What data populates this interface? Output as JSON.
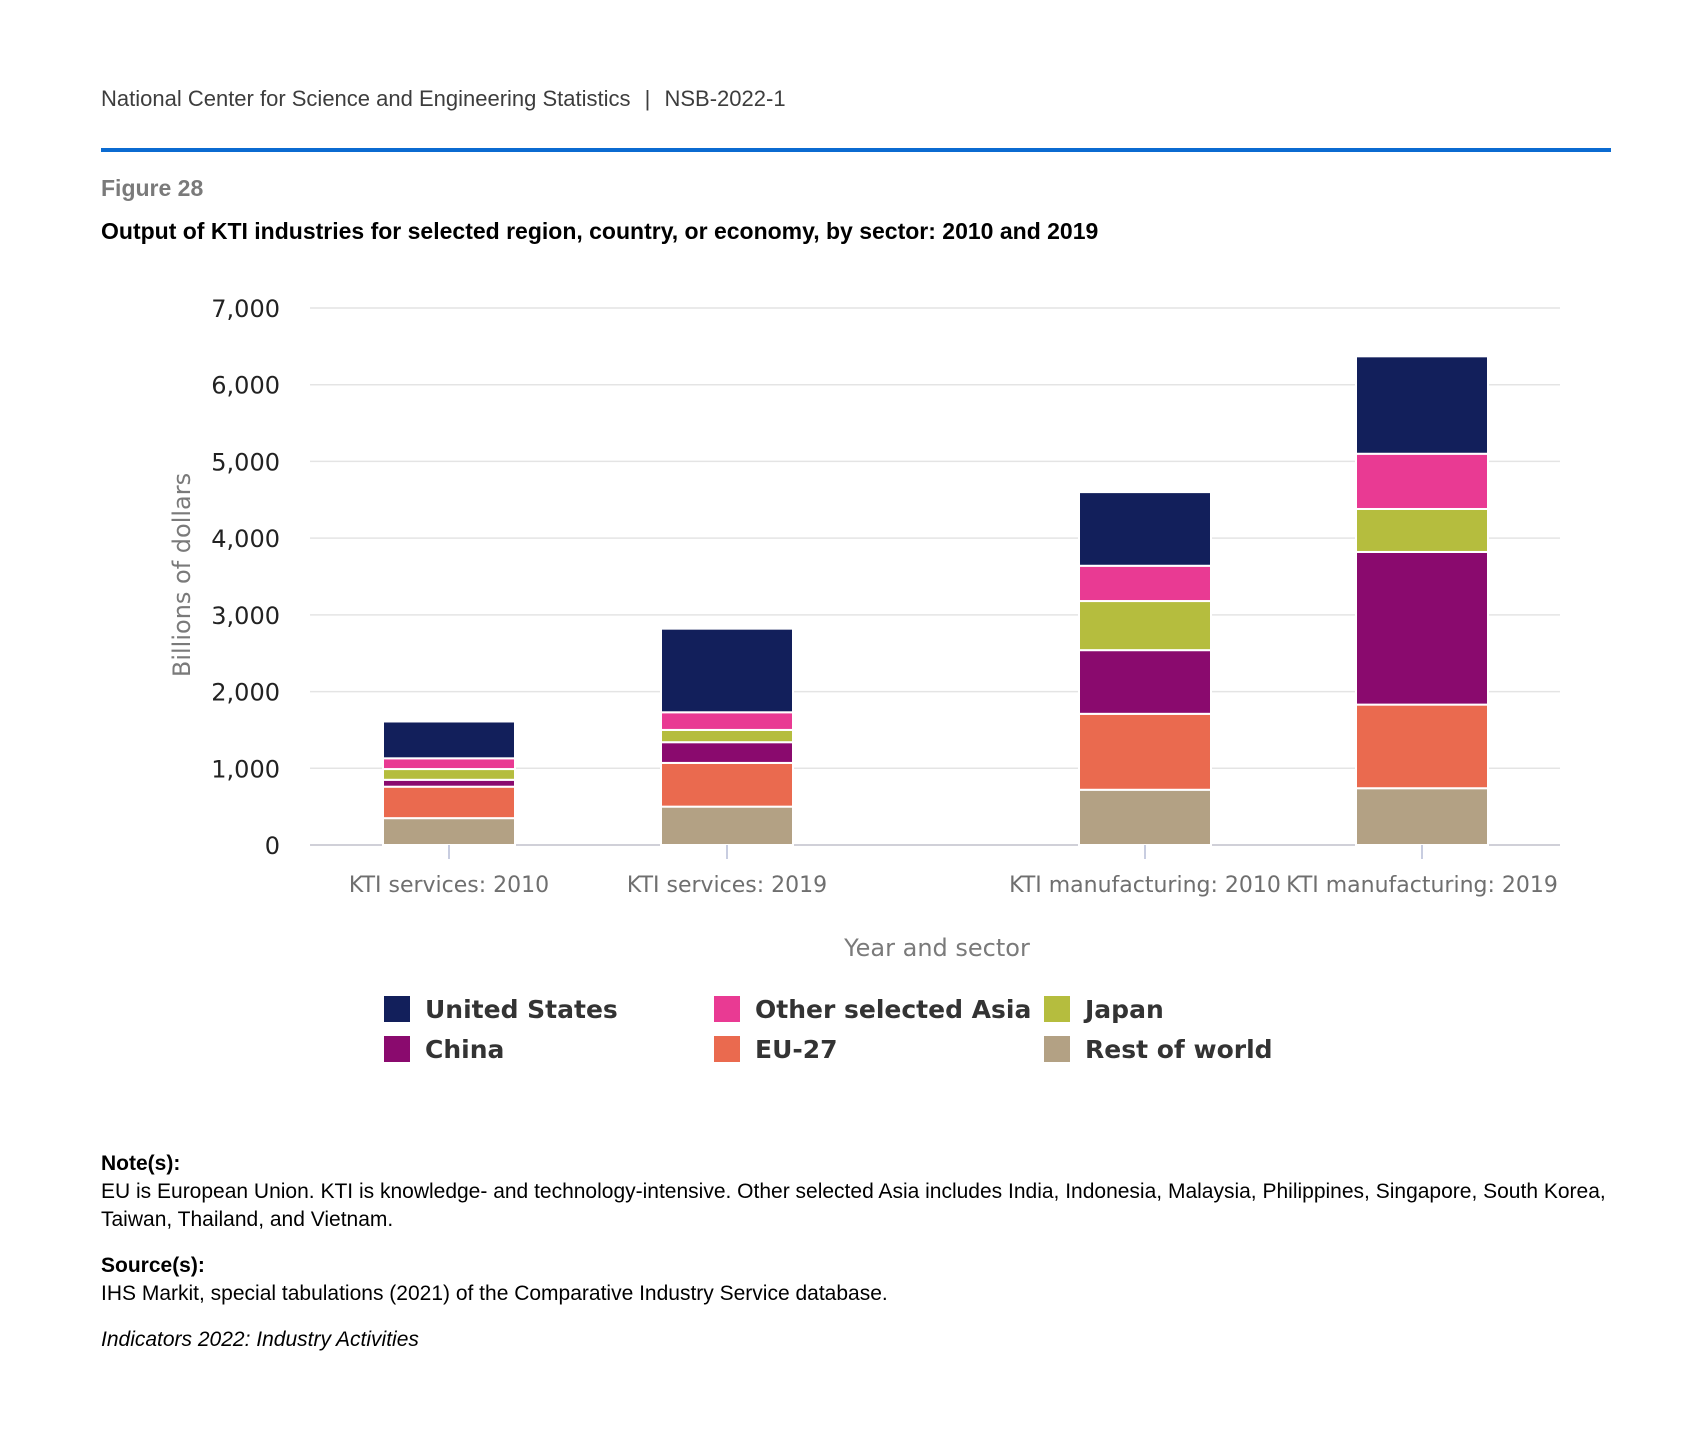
{
  "header": {
    "org": "National Center for Science and Engineering Statistics",
    "separator": "|",
    "report": "NSB-2022-1",
    "accent_color": "#0b6bd1"
  },
  "figure": {
    "label": "Figure 28",
    "title": "Output of KTI industries for selected region, country, or economy, by sector: 2010 and 2019"
  },
  "chart_data": {
    "type": "bar",
    "stacked": true,
    "categories": [
      "KTI services: 2010",
      "KTI services: 2019",
      "KTI manufacturing: 2010",
      "KTI manufacturing: 2019"
    ],
    "xlabel": "Year and sector",
    "ylabel": "Billions of dollars",
    "ylim": [
      0,
      7000
    ],
    "yticks": [
      0,
      1000,
      2000,
      3000,
      4000,
      5000,
      6000,
      7000
    ],
    "ytick_labels": [
      "0",
      "1,000",
      "2,000",
      "3,000",
      "4,000",
      "5,000",
      "6,000",
      "7,000"
    ],
    "grid": true,
    "legend_position": "bottom",
    "series": [
      {
        "name": "Rest of world",
        "color": "#b3a184",
        "values": [
          350,
          500,
          720,
          740
        ]
      },
      {
        "name": "EU-27",
        "color": "#ea6a4f",
        "values": [
          410,
          570,
          990,
          1090
        ]
      },
      {
        "name": "China",
        "color": "#8a0a6e",
        "values": [
          90,
          270,
          830,
          1990
        ]
      },
      {
        "name": "Japan",
        "color": "#b5bd3e",
        "values": [
          140,
          160,
          640,
          560
        ]
      },
      {
        "name": "Other selected Asia",
        "color": "#e93a93",
        "values": [
          140,
          230,
          460,
          720
        ]
      },
      {
        "name": "United States",
        "color": "#121f5b",
        "values": [
          480,
          1090,
          960,
          1270
        ]
      }
    ],
    "legend": [
      {
        "name": "United States",
        "color": "#121f5b"
      },
      {
        "name": "Other selected Asia",
        "color": "#e93a93"
      },
      {
        "name": "Japan",
        "color": "#b5bd3e"
      },
      {
        "name": "China",
        "color": "#8a0a6e"
      },
      {
        "name": "EU-27",
        "color": "#ea6a4f"
      },
      {
        "name": "Rest of world",
        "color": "#b3a184"
      }
    ]
  },
  "notes": {
    "note_heading": "Note(s):",
    "note_text": "EU is European Union. KTI is knowledge- and technology-intensive. Other selected Asia includes India, Indonesia, Malaysia, Philippines, Singapore, South Korea, Taiwan, Thailand, and Vietnam.",
    "source_heading": "Source(s):",
    "source_text": "IHS Markit, special tabulations (2021) of the Comparative Industry Service database.",
    "citation": "Indicators 2022: Industry Activities"
  }
}
